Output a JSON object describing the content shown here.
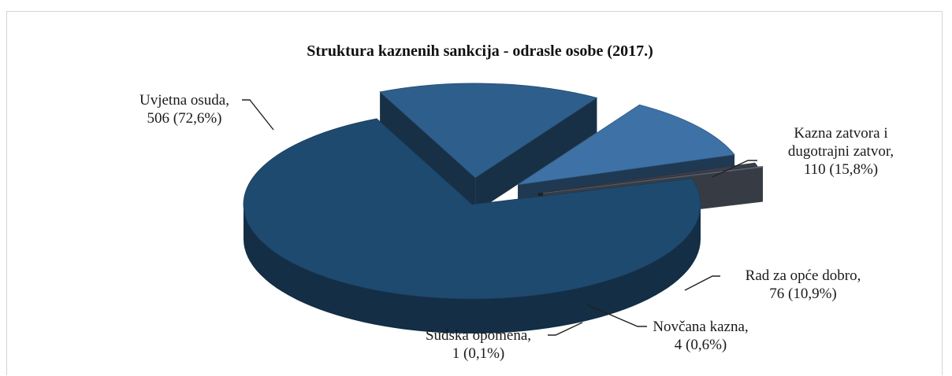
{
  "chart_data": {
    "type": "pie",
    "title": "Struktura kaznenih sankcija - odrasle osobe (2017.)",
    "three_d": true,
    "exploded": true,
    "slices": [
      {
        "category": "Uvjetna osuda",
        "value": 506,
        "percent": "72,6%",
        "label_lines": [
          "Uvjetna osuda,",
          "506 (72,6%)"
        ],
        "color": "#1f4a70"
      },
      {
        "category": "Kazna zatvora i dugotrajni zatvor",
        "value": 110,
        "percent": "15,8%",
        "label_lines": [
          "Kazna zatvora i",
          "dugotrajni zatvor,",
          "110 (15,8%)"
        ],
        "color": "#2e5f8c"
      },
      {
        "category": "Rad za opće dobro",
        "value": 76,
        "percent": "10,9%",
        "label_lines": [
          "Rad za opće dobro,",
          "76 (10,9%)"
        ],
        "color": "#3e72a6"
      },
      {
        "category": "Novčana kazna",
        "value": 4,
        "percent": "0,6%",
        "label_lines": [
          "Novčana kazna,",
          "4 (0,6%)"
        ],
        "color": "#3b3f4c"
      },
      {
        "category": "Sudska opomena",
        "value": 1,
        "percent": "0,1%",
        "label_lines": [
          "Sudska opomena,",
          "1 (0,1%)"
        ],
        "color": "#6d7788"
      }
    ]
  }
}
